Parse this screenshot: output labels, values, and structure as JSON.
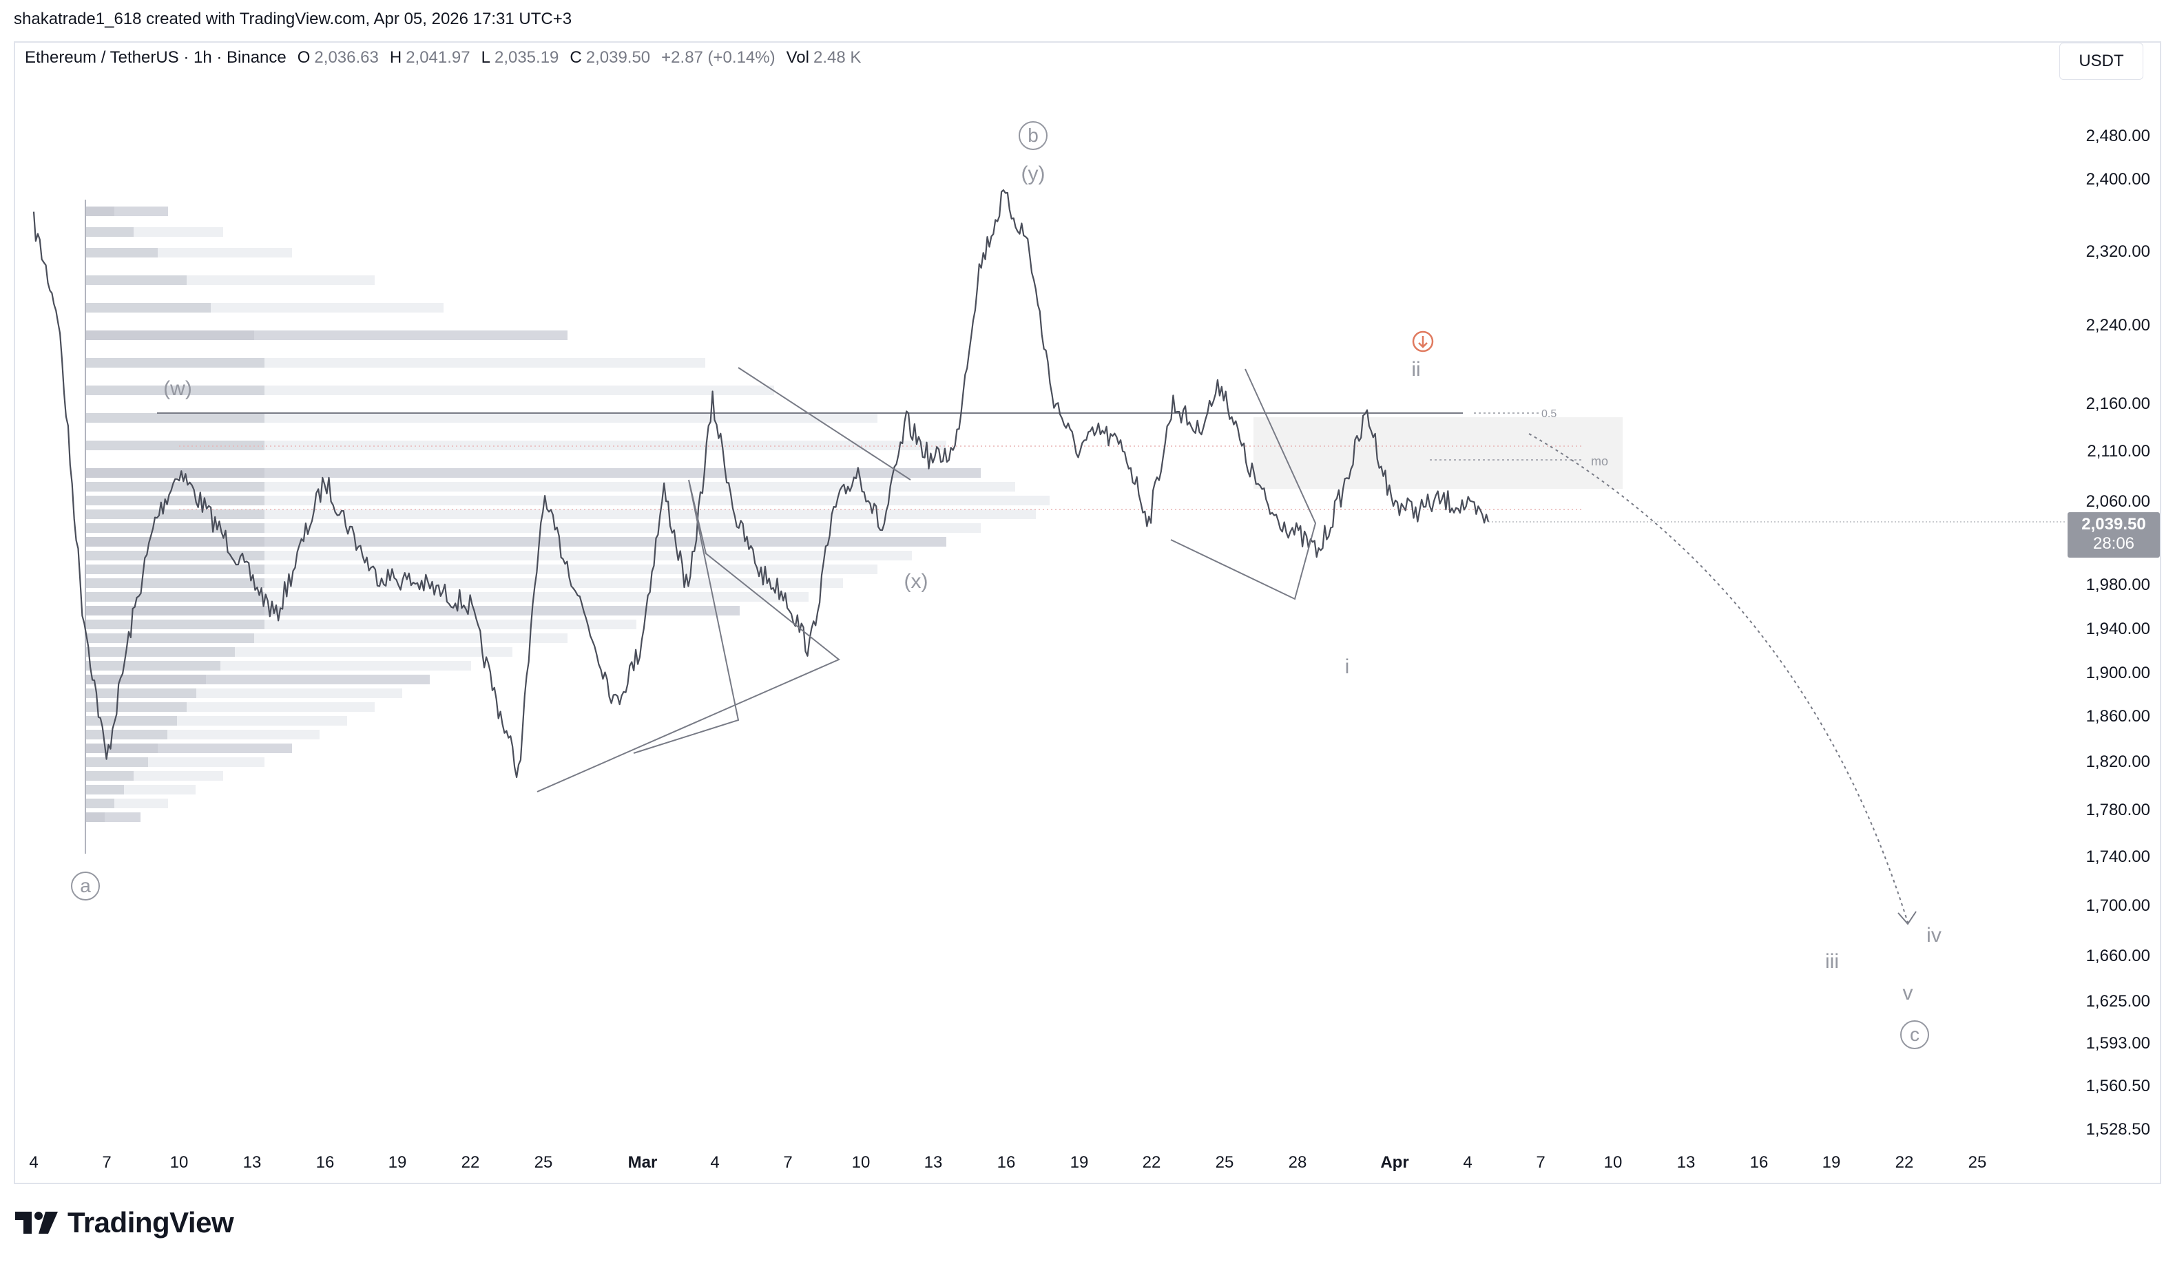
{
  "header": {
    "text": "shakatrade1_618 created with TradingView.com, Apr 05, 2026 17:31 UTC+3"
  },
  "legend": {
    "symbol": "Ethereum / TetherUS · 1h · Binance",
    "open_label": "O",
    "open": "2,036.63",
    "high_label": "H",
    "high": "2,041.97",
    "low_label": "L",
    "low": "2,035.19",
    "close_label": "C",
    "close": "2,039.50",
    "change": "+2.87 (+0.14%)",
    "vol_label": "Vol",
    "vol": "2.48 K"
  },
  "currency": "USDT",
  "last_price": {
    "price": "2,039.50",
    "countdown": "28:06"
  },
  "brand": "TradingView",
  "chart_data": {
    "type": "line",
    "price_axis": [
      "2,480.00",
      "2,400.00",
      "2,320.00",
      "2,240.00",
      "2,160.00",
      "2,110.00",
      "2,060.00",
      "1,980.00",
      "1,940.00",
      "1,900.00",
      "1,860.00",
      "1,820.00",
      "1,780.00",
      "1,740.00",
      "1,700.00",
      "1,660.00",
      "1,625.00",
      "1,593.00",
      "1,560.50",
      "1,528.50"
    ],
    "time_axis": [
      "4",
      "7",
      "10",
      "13",
      "16",
      "19",
      "22",
      "25",
      "Mar",
      "4",
      "7",
      "10",
      "13",
      "16",
      "19",
      "22",
      "25",
      "28",
      "Apr",
      "4",
      "7",
      "10",
      "13",
      "16",
      "19",
      "22",
      "25"
    ],
    "series": [
      {
        "values_x": [
          "Feb 4",
          "Feb 5",
          "Feb 6",
          "Feb 7",
          "Feb 8",
          "Feb 9",
          "Feb 10",
          "Feb 12",
          "Feb 14",
          "Feb 16",
          "Feb 18",
          "Feb 20",
          "Feb 22",
          "Feb 23",
          "Feb 24",
          "Feb 25",
          "Feb 26",
          "Feb 28",
          "Mar 1",
          "Mar 2",
          "Mar 3",
          "Mar 4",
          "Mar 5",
          "Mar 6",
          "Mar 7",
          "Mar 8",
          "Mar 9",
          "Mar 10",
          "Mar 11",
          "Mar 12",
          "Mar 13",
          "Mar 14",
          "Mar 15",
          "Mar 16",
          "Mar 17",
          "Mar 18",
          "Mar 19",
          "Mar 20",
          "Mar 21",
          "Mar 22",
          "Mar 23",
          "Mar 24",
          "Mar 25",
          "Mar 26",
          "Mar 27",
          "Mar 28",
          "Mar 29",
          "Mar 30",
          "Mar 31",
          "Apr 1",
          "Apr 2",
          "Apr 3",
          "Apr 4",
          "Apr 5"
        ],
        "values": [
          2350,
          2250,
          1960,
          1820,
          1940,
          2040,
          2090,
          2020,
          1950,
          2080,
          1990,
          1980,
          1960,
          1880,
          1810,
          2060,
          2000,
          1870,
          1920,
          2070,
          1970,
          2160,
          2040,
          1990,
          1970,
          1920,
          2050,
          2090,
          2030,
          2140,
          2100,
          2110,
          2300,
          2380,
          2330,
          2170,
          2110,
          2130,
          2110,
          2040,
          2160,
          2130,
          2180,
          2100,
          2050,
          2030,
          2010,
          2070,
          2150,
          2060,
          2050,
          2060,
          2055,
          2039.5
        ]
      }
    ],
    "annotations": [
      "(w)",
      "(x)",
      "(y)",
      "a",
      "b",
      "c",
      "i",
      "ii",
      "iii",
      "iv",
      "v",
      "0.5",
      "mo"
    ]
  }
}
